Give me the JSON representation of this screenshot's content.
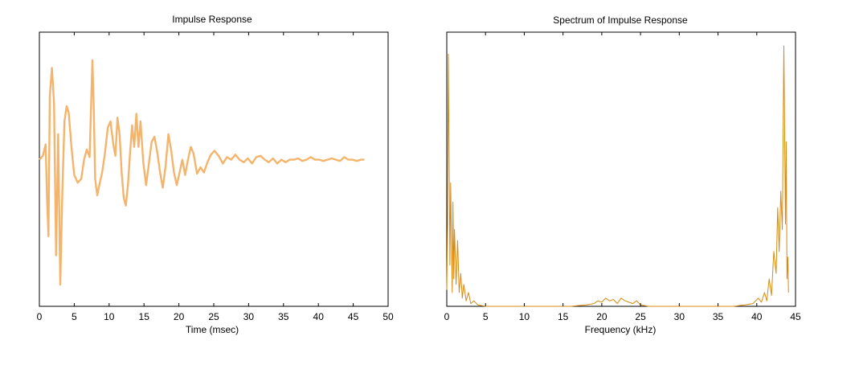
{
  "chart_data": [
    {
      "type": "line",
      "title": "Impulse Response",
      "xlabel": "Time (msec)",
      "ylabel": "",
      "xlim": [
        0,
        50
      ],
      "ylim": [
        -1.15,
        1.0
      ],
      "xticks": [
        0,
        5,
        10,
        15,
        20,
        25,
        30,
        35,
        40,
        45,
        50
      ],
      "yticks_visible": false,
      "grid": false,
      "series": [
        {
          "color": "#f4b46c",
          "x": [
            0,
            0.5,
            0.9,
            1.1,
            1.3,
            1.5,
            1.8,
            2.1,
            2.4,
            2.7,
            3.0,
            3.3,
            3.6,
            3.9,
            4.2,
            4.6,
            5.0,
            5.5,
            6.0,
            6.4,
            6.8,
            7.2,
            7.6,
            7.8,
            8.0,
            8.3,
            8.6,
            9.0,
            9.4,
            9.8,
            10.2,
            10.6,
            10.9,
            11.2,
            11.5,
            11.8,
            12.1,
            12.4,
            12.7,
            13.0,
            13.3,
            13.6,
            13.9,
            14.2,
            14.5,
            14.9,
            15.3,
            15.7,
            16.1,
            16.5,
            16.9,
            17.3,
            17.7,
            18.1,
            18.5,
            18.9,
            19.3,
            19.7,
            20.1,
            20.5,
            20.9,
            21.3,
            21.7,
            22.1,
            22.6,
            23.1,
            23.6,
            24.1,
            24.6,
            25.1,
            25.7,
            26.3,
            26.9,
            27.5,
            28.1,
            28.7,
            29.3,
            29.9,
            30.5,
            31.1,
            31.7,
            32.3,
            32.9,
            33.5,
            34.1,
            34.7,
            35.3,
            35.9,
            36.5,
            37.1,
            37.7,
            38.3,
            38.9,
            39.5,
            40.1,
            40.7,
            41.3,
            41.9,
            42.5,
            43.1,
            43.7,
            44.3,
            44.9,
            45.5,
            46.1,
            46.6
          ],
          "y": [
            0.0,
            0.03,
            0.12,
            -0.3,
            -0.6,
            0.5,
            0.72,
            0.45,
            -0.75,
            0.2,
            -0.98,
            -0.25,
            0.3,
            0.42,
            0.37,
            0.1,
            -0.12,
            -0.18,
            -0.15,
            0.0,
            0.08,
            0.02,
            0.78,
            0.4,
            -0.15,
            -0.28,
            -0.2,
            -0.1,
            0.05,
            0.25,
            0.3,
            0.12,
            0.03,
            0.33,
            0.2,
            -0.1,
            -0.3,
            -0.36,
            -0.2,
            0.05,
            0.27,
            0.1,
            0.36,
            0.1,
            0.3,
            -0.02,
            -0.2,
            -0.03,
            0.14,
            0.18,
            0.06,
            -0.1,
            -0.22,
            -0.05,
            0.2,
            0.07,
            -0.1,
            -0.2,
            -0.1,
            0.0,
            -0.12,
            0.0,
            0.1,
            0.05,
            -0.11,
            -0.06,
            -0.1,
            -0.02,
            0.04,
            0.07,
            0.03,
            -0.03,
            0.02,
            0.0,
            0.04,
            0.0,
            -0.02,
            0.01,
            -0.03,
            0.02,
            0.03,
            0.0,
            -0.02,
            0.01,
            -0.03,
            0.0,
            -0.02,
            0.0,
            0.0,
            0.01,
            -0.01,
            0.0,
            0.02,
            0.0,
            0.0,
            -0.01,
            0.0,
            0.01,
            0.0,
            -0.01,
            0.02,
            0.0,
            0.0,
            -0.01,
            0.0,
            0.0
          ]
        }
      ]
    },
    {
      "type": "line",
      "title": "Spectrum of Impulse Response",
      "xlabel": "Frequency (kHz)",
      "ylabel": "",
      "xlim": [
        0,
        45
      ],
      "ylim": [
        0,
        1.0
      ],
      "xticks": [
        0,
        5,
        10,
        15,
        20,
        25,
        30,
        35,
        40,
        45
      ],
      "yticks_visible": false,
      "grid": false,
      "series": [
        {
          "color": "#d98a10",
          "x": [
            0.0,
            0.1,
            0.2,
            0.3,
            0.4,
            0.5,
            0.6,
            0.7,
            0.8,
            0.9,
            1.0,
            1.2,
            1.4,
            1.6,
            1.8,
            2.0,
            2.2,
            2.5,
            2.8,
            3.1,
            3.5,
            4.0,
            5.0,
            7.0,
            10.0,
            13.0,
            16.0,
            18.0,
            19.0,
            19.5,
            20.0,
            20.5,
            21.0,
            21.5,
            22.0,
            22.5,
            23.0,
            23.5,
            24.0,
            24.5,
            25.0,
            26.0,
            28.0,
            31.0,
            34.0,
            37.0,
            38.5,
            39.5,
            40.2,
            40.6,
            41.0,
            41.3,
            41.6,
            41.9,
            42.2,
            42.5,
            42.7,
            42.9,
            43.1,
            43.3,
            43.5,
            43.7,
            43.8,
            43.9,
            44.0,
            44.1
          ],
          "y": [
            0.06,
            0.3,
            0.92,
            0.55,
            0.15,
            0.45,
            0.25,
            0.05,
            0.38,
            0.1,
            0.28,
            0.08,
            0.24,
            0.05,
            0.12,
            0.03,
            0.08,
            0.02,
            0.05,
            0.01,
            0.02,
            0.005,
            0.0,
            0.0,
            0.0,
            0.0,
            0.0,
            0.005,
            0.01,
            0.02,
            0.015,
            0.03,
            0.02,
            0.025,
            0.01,
            0.03,
            0.02,
            0.015,
            0.01,
            0.02,
            0.005,
            0.0,
            0.0,
            0.0,
            0.0,
            0.0,
            0.005,
            0.01,
            0.03,
            0.015,
            0.05,
            0.02,
            0.1,
            0.04,
            0.2,
            0.12,
            0.36,
            0.2,
            0.42,
            0.28,
            0.95,
            0.3,
            0.6,
            0.1,
            0.18,
            0.05
          ]
        }
      ]
    }
  ]
}
